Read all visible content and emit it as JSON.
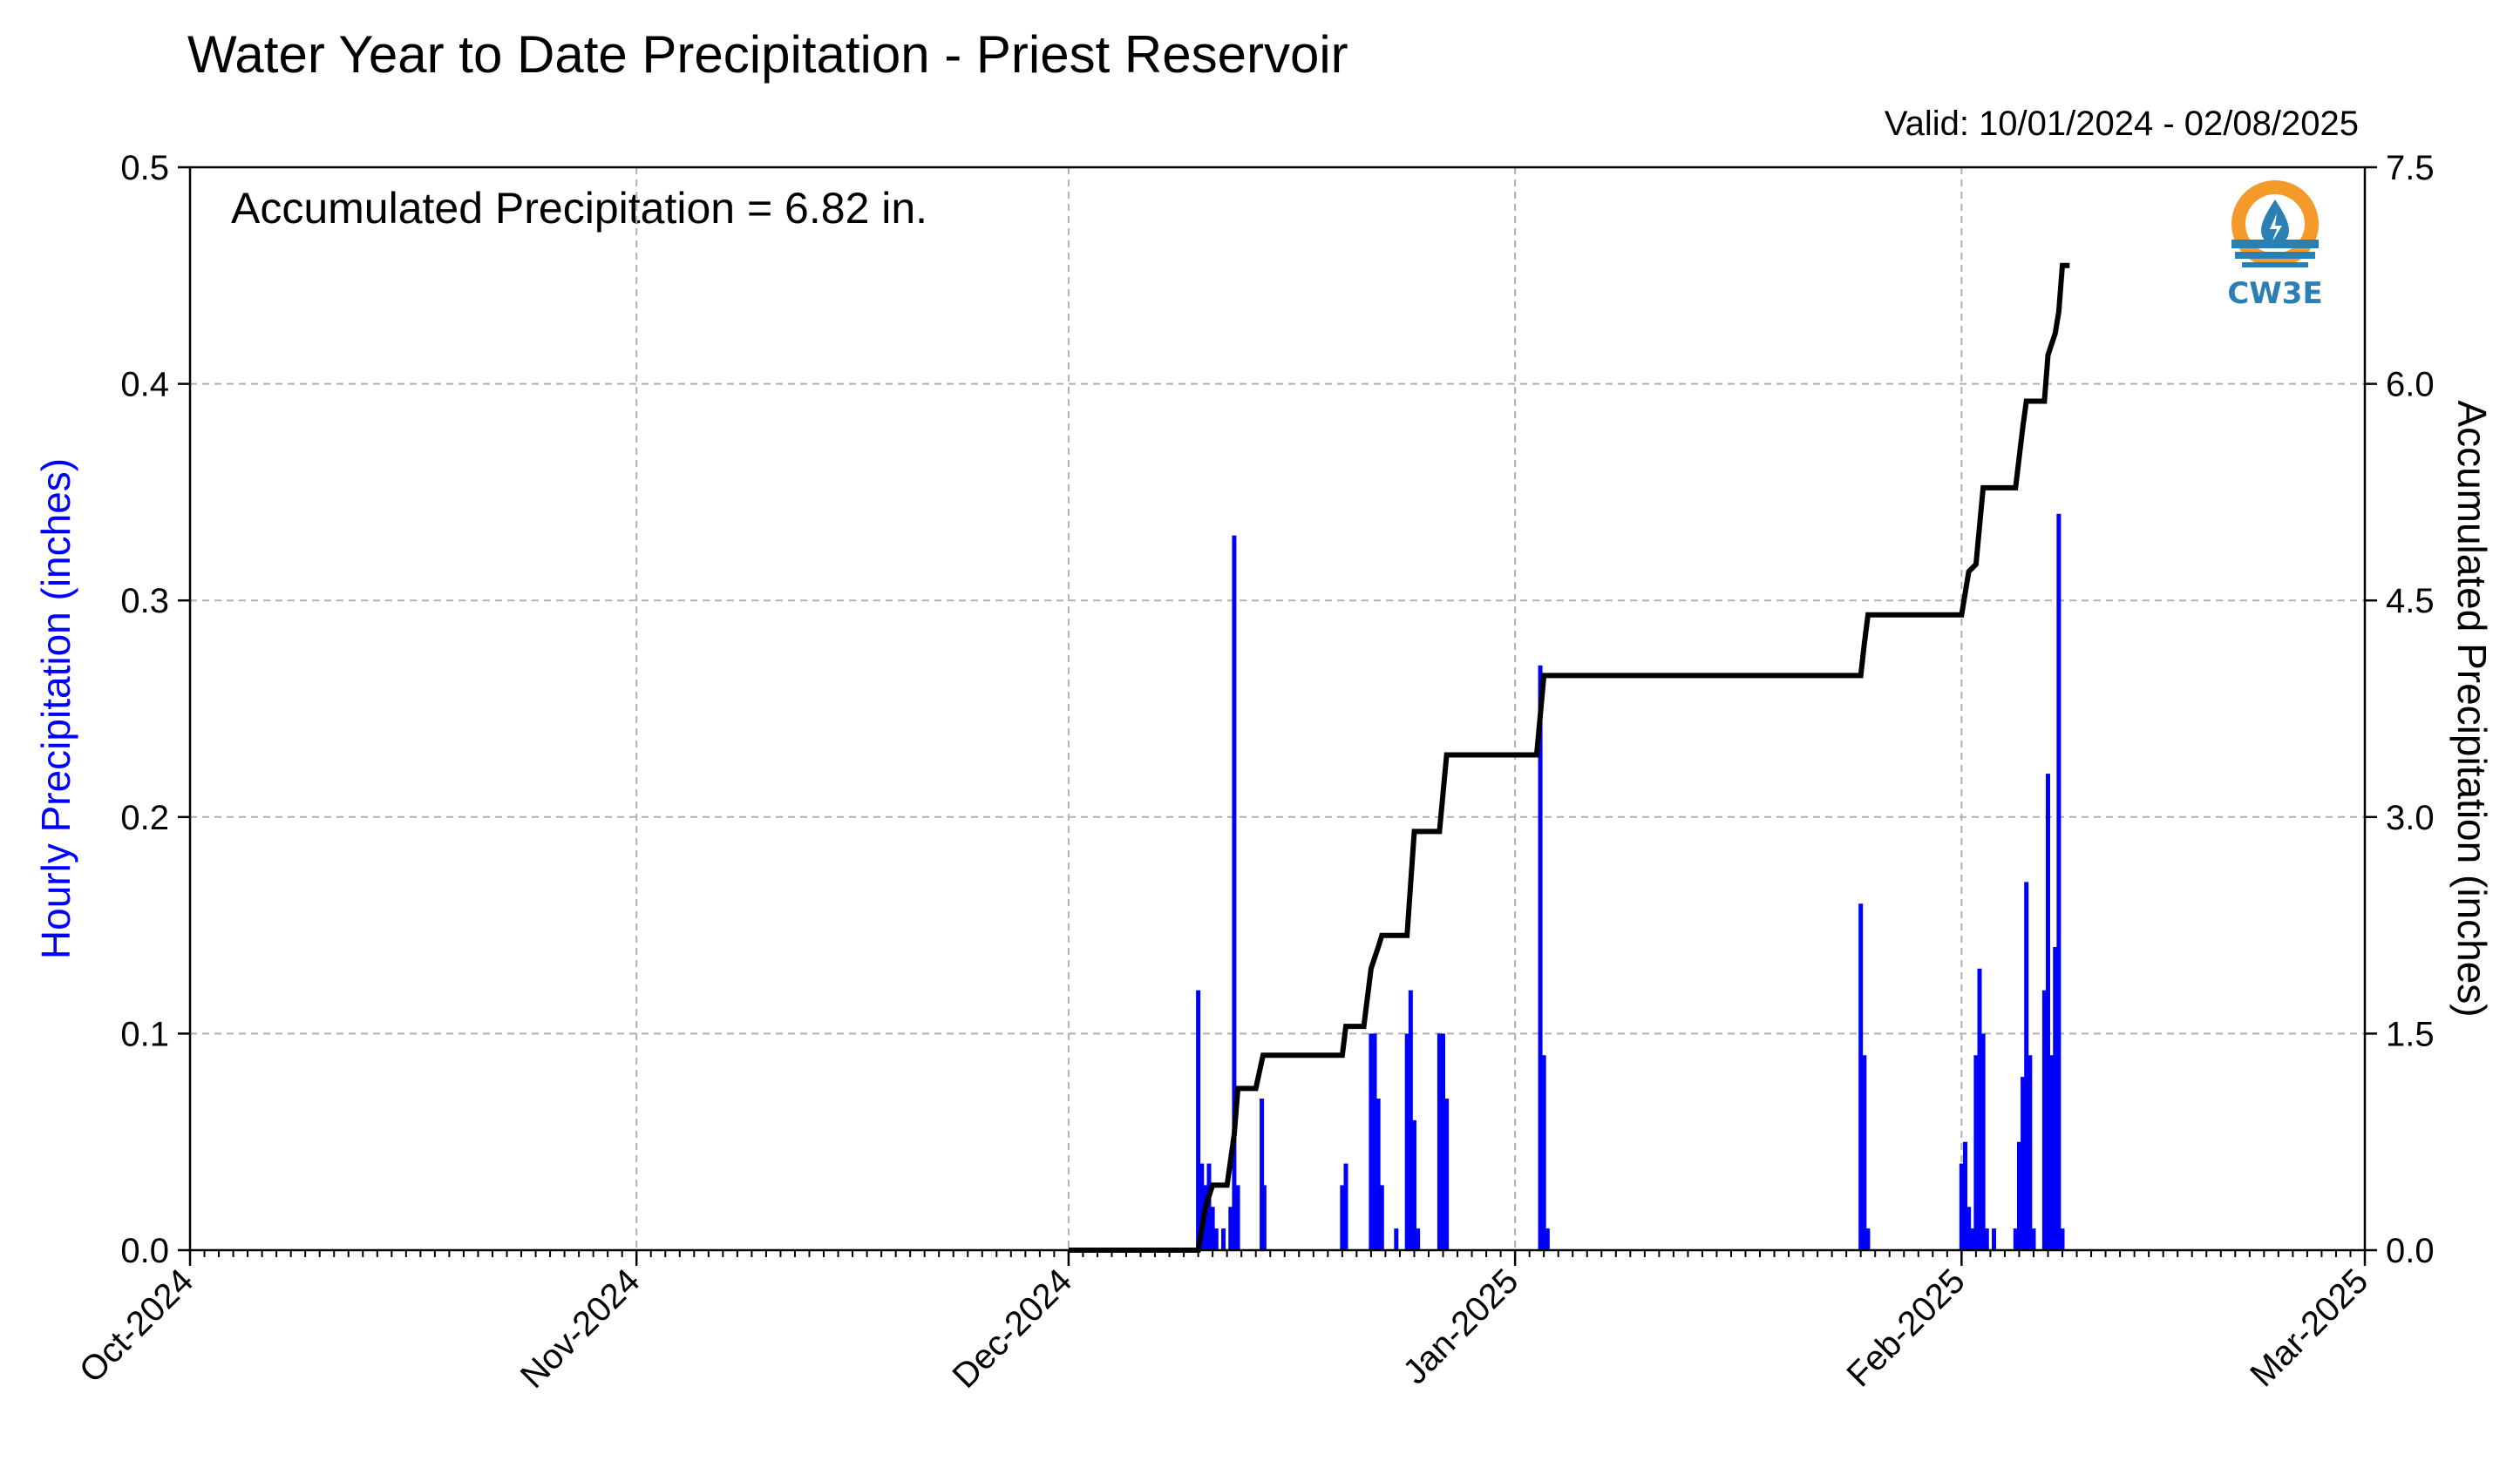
{
  "title": "Water Year to Date Precipitation - Priest Reservoir",
  "valid_label": "Valid: 10/01/2024 - 02/08/2025",
  "accum_label": "Accumulated Precipitation = 6.82 in.",
  "logo_text": "CW3E",
  "colors": {
    "hourly": "#0000ff",
    "accumulated": "#000000",
    "grid": "#b0b0b0",
    "logo_orange": "#f39a2b",
    "logo_blue": "#2a7fb3"
  },
  "chart_data": {
    "type": "bar",
    "title": "Water Year to Date Precipitation - Priest Reservoir",
    "xlabel": "",
    "ylabel": "Hourly Precipitation (inches)",
    "y2label": "Accumulated Precipitation (inches)",
    "xlim": [
      "2024-10-01",
      "2025-03-01"
    ],
    "ylim": [
      0,
      0.5
    ],
    "y2lim": [
      0,
      7.5
    ],
    "grid": true,
    "x_tick_labels": [
      {
        "date": "2024-10-01",
        "label": "Oct-2024"
      },
      {
        "date": "2024-11-01",
        "label": "Nov-2024"
      },
      {
        "date": "2024-12-01",
        "label": "Dec-2024"
      },
      {
        "date": "2025-01-01",
        "label": "Jan-2025"
      },
      {
        "date": "2025-02-01",
        "label": "Feb-2025"
      },
      {
        "date": "2025-03-01",
        "label": "Mar-2025"
      }
    ],
    "y_tick_labels": [
      "0.0",
      "0.1",
      "0.2",
      "0.3",
      "0.4",
      "0.5"
    ],
    "y2_tick_labels": [
      "0.0",
      "1.5",
      "3.0",
      "4.5",
      "6.0",
      "7.5"
    ],
    "series": [
      {
        "name": "Hourly Precipitation (inches)",
        "type": "bar",
        "points": [
          [
            "2024-12-10T00:00",
            0.12
          ],
          [
            "2024-12-10T06:00",
            0.04
          ],
          [
            "2024-12-10T12:00",
            0.03
          ],
          [
            "2024-12-10T18:00",
            0.04
          ],
          [
            "2024-12-11T00:00",
            0.02
          ],
          [
            "2024-12-11T06:00",
            0.01
          ],
          [
            "2024-12-11T18:00",
            0.01
          ],
          [
            "2024-12-12T06:00",
            0.02
          ],
          [
            "2024-12-12T12:00",
            0.33
          ],
          [
            "2024-12-12T18:00",
            0.03
          ],
          [
            "2024-12-14T10:00",
            0.07
          ],
          [
            "2024-12-14T14:00",
            0.03
          ],
          [
            "2024-12-20T00:00",
            0.03
          ],
          [
            "2024-12-20T06:00",
            0.04
          ],
          [
            "2024-12-22T00:00",
            0.1
          ],
          [
            "2024-12-22T06:00",
            0.1
          ],
          [
            "2024-12-22T12:00",
            0.07
          ],
          [
            "2024-12-22T18:00",
            0.03
          ],
          [
            "2024-12-23T18:00",
            0.01
          ],
          [
            "2024-12-24T12:00",
            0.1
          ],
          [
            "2024-12-24T18:00",
            0.12
          ],
          [
            "2024-12-25T00:00",
            0.06
          ],
          [
            "2024-12-25T06:00",
            0.01
          ],
          [
            "2024-12-26T18:00",
            0.1
          ],
          [
            "2024-12-27T00:00",
            0.1
          ],
          [
            "2024-12-27T06:00",
            0.07
          ],
          [
            "2025-01-02T18:00",
            0.27
          ],
          [
            "2025-01-03T00:00",
            0.09
          ],
          [
            "2025-01-03T06:00",
            0.01
          ],
          [
            "2025-01-25T00:00",
            0.16
          ],
          [
            "2025-01-25T06:00",
            0.09
          ],
          [
            "2025-01-25T12:00",
            0.01
          ],
          [
            "2025-02-01T00:00",
            0.04
          ],
          [
            "2025-02-01T06:00",
            0.05
          ],
          [
            "2025-02-01T12:00",
            0.02
          ],
          [
            "2025-02-01T18:00",
            0.01
          ],
          [
            "2025-02-02T00:00",
            0.09
          ],
          [
            "2025-02-02T06:00",
            0.13
          ],
          [
            "2025-02-02T12:00",
            0.1
          ],
          [
            "2025-02-02T18:00",
            0.01
          ],
          [
            "2025-02-03T06:00",
            0.01
          ],
          [
            "2025-02-04T18:00",
            0.01
          ],
          [
            "2025-02-05T00:00",
            0.05
          ],
          [
            "2025-02-05T06:00",
            0.08
          ],
          [
            "2025-02-05T12:00",
            0.17
          ],
          [
            "2025-02-05T18:00",
            0.09
          ],
          [
            "2025-02-06T00:00",
            0.01
          ],
          [
            "2025-02-06T18:00",
            0.12
          ],
          [
            "2025-02-07T00:00",
            0.22
          ],
          [
            "2025-02-07T06:00",
            0.09
          ],
          [
            "2025-02-07T12:00",
            0.14
          ],
          [
            "2025-02-07T18:00",
            0.34
          ],
          [
            "2025-02-08T00:00",
            0.01
          ]
        ]
      },
      {
        "name": "Accumulated Precipitation (inches)",
        "type": "line",
        "points": [
          [
            "2024-12-01T00:00",
            0.0
          ],
          [
            "2024-12-10T00:00",
            0.0
          ],
          [
            "2024-12-10T06:00",
            0.15
          ],
          [
            "2024-12-10T12:00",
            0.3
          ],
          [
            "2024-12-11T00:00",
            0.45
          ],
          [
            "2024-12-12T00:00",
            0.45
          ],
          [
            "2024-12-12T12:00",
            0.8
          ],
          [
            "2024-12-12T18:00",
            1.12
          ],
          [
            "2024-12-14T00:00",
            1.12
          ],
          [
            "2024-12-14T12:00",
            1.35
          ],
          [
            "2024-12-20T00:00",
            1.35
          ],
          [
            "2024-12-20T06:00",
            1.55
          ],
          [
            "2024-12-21T12:00",
            1.55
          ],
          [
            "2024-12-22T00:00",
            1.95
          ],
          [
            "2024-12-22T12:00",
            2.1
          ],
          [
            "2024-12-22T18:00",
            2.18
          ],
          [
            "2024-12-24T12:00",
            2.18
          ],
          [
            "2024-12-25T00:00",
            2.9
          ],
          [
            "2024-12-26T18:00",
            2.9
          ],
          [
            "2024-12-27T06:00",
            3.43
          ],
          [
            "2025-01-02T12:00",
            3.43
          ],
          [
            "2025-01-03T00:00",
            3.98
          ],
          [
            "2025-01-25T00:00",
            3.98
          ],
          [
            "2025-01-25T06:00",
            4.2
          ],
          [
            "2025-01-25T12:00",
            4.4
          ],
          [
            "2025-02-01T00:00",
            4.4
          ],
          [
            "2025-02-01T12:00",
            4.7
          ],
          [
            "2025-02-02T00:00",
            4.75
          ],
          [
            "2025-02-02T12:00",
            5.28
          ],
          [
            "2025-02-04T18:00",
            5.28
          ],
          [
            "2025-02-05T06:00",
            5.7
          ],
          [
            "2025-02-05T12:00",
            5.88
          ],
          [
            "2025-02-06T18:00",
            5.88
          ],
          [
            "2025-02-07T00:00",
            6.2
          ],
          [
            "2025-02-07T12:00",
            6.35
          ],
          [
            "2025-02-07T18:00",
            6.5
          ],
          [
            "2025-02-08T00:00",
            6.82
          ],
          [
            "2025-02-08T12:00",
            6.82
          ]
        ]
      }
    ]
  }
}
